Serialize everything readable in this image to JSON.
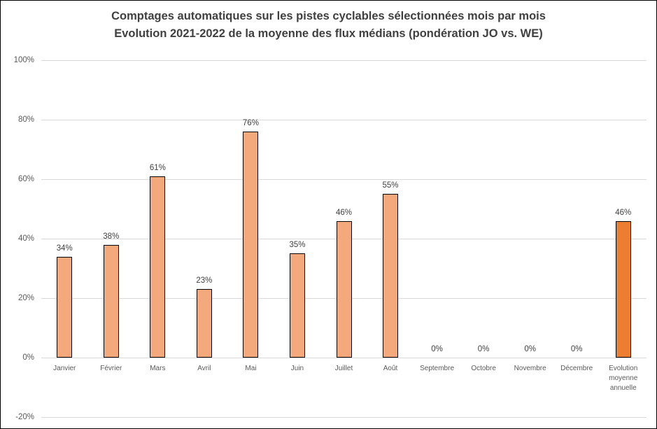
{
  "window": {
    "background": "#ffffff",
    "border_color": "#000000"
  },
  "chart_data": {
    "type": "bar",
    "title": "Comptages automatiques sur les pistes cyclables sélectionnées mois par mois Evolution 2021-2022 de la moyenne des flux médians (pondération JO vs. WE)",
    "title_line1": "Comptages automatiques sur les pistes cyclables sélectionnées mois par mois",
    "title_line2": "Evolution 2021-2022 de la moyenne des flux médians (pondération JO vs. WE)",
    "categories": [
      "Janvier",
      "Février",
      "Mars",
      "Avril",
      "Mai",
      "Juin",
      "Juillet",
      "Août",
      "Septembre",
      "Octobre",
      "Novembre",
      "Décembre",
      "Evolution moyenne annuelle"
    ],
    "values": [
      34,
      38,
      61,
      23,
      76,
      35,
      46,
      55,
      0,
      0,
      0,
      0,
      46
    ],
    "data_labels": [
      "34%",
      "38%",
      "61%",
      "23%",
      "76%",
      "35%",
      "46%",
      "55%",
      "0%",
      "0%",
      "0%",
      "0%",
      "46%"
    ],
    "xlabel": "",
    "ylabel": "",
    "ylim": [
      -20,
      100
    ],
    "y_tick_step": 20,
    "y_ticks": [
      {
        "value": 100,
        "label": "100%"
      },
      {
        "value": 80,
        "label": "80%"
      },
      {
        "value": 60,
        "label": "60%"
      },
      {
        "value": 40,
        "label": "40%"
      },
      {
        "value": 20,
        "label": "20%"
      },
      {
        "value": 0,
        "label": "0%"
      },
      {
        "value": -20,
        "label": "-20%"
      }
    ],
    "grid": true,
    "legend": "none",
    "colors": {
      "bar_fill": "#F4A97C",
      "bar_fill_last": "#ED7D31",
      "bar_border": "#000000",
      "gridline": "#D9D9D9",
      "axis_tick_label": "#595959",
      "category_label": "#595959",
      "data_label": "#404040",
      "title": "#404040"
    }
  }
}
